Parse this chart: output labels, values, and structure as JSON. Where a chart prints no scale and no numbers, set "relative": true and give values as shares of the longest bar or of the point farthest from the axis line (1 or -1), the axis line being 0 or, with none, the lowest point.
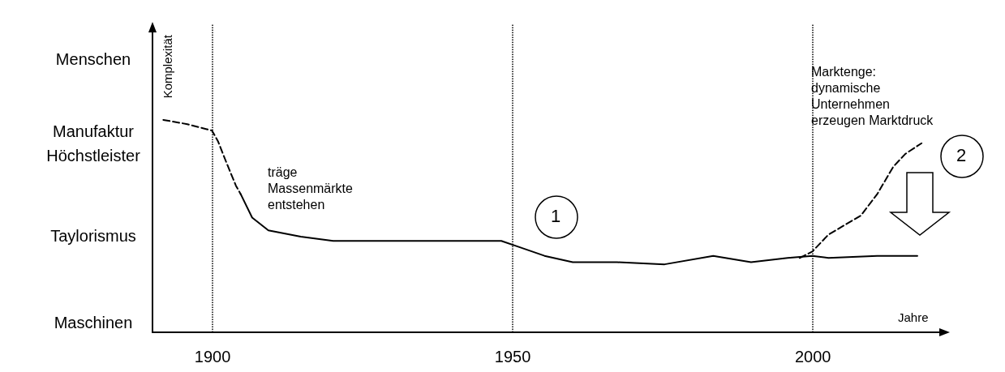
{
  "chart_data": {
    "type": "line",
    "xlabel": "Jahre",
    "ylabel": "Komplexität",
    "relative": true,
    "xlim": [
      1890,
      2022
    ],
    "xticks": [
      1900,
      1950,
      2000
    ],
    "marker": "none",
    "series": [
      {
        "color": "#000000",
        "line_style": "dashed",
        "x": [
          1891.8,
          1895.8,
          1899.9,
          1900.9,
          1902.3,
          1903.9,
          1904.7
        ],
        "values": [
          1.0,
          0.98,
          0.95,
          0.9,
          0.8,
          0.69,
          0.65
        ]
      },
      {
        "color": "#000000",
        "line_style": "solid",
        "x": [
          1904.7,
          1906.6,
          1909.3,
          1914.7,
          1920.1,
          1929.6,
          1943.1,
          1948.1,
          1951.2,
          1955.3,
          1960,
          1967.4,
          1975.3,
          1983.4,
          1989.7,
          1995.8,
          1999.9,
          2002.6,
          2010.7,
          2017.4
        ],
        "values": [
          0.65,
          0.54,
          0.48,
          0.45,
          0.43,
          0.43,
          0.43,
          0.43,
          0.4,
          0.36,
          0.33,
          0.33,
          0.32,
          0.36,
          0.33,
          0.35,
          0.36,
          0.35,
          0.36,
          0.36
        ]
      },
      {
        "color": "#000000",
        "line_style": "dashed",
        "x": [
          1997.8,
          1999.9,
          2002.6,
          2008,
          2010.7,
          2013.4,
          2015.4,
          2018.1
        ],
        "values": [
          0.35,
          0.38,
          0.46,
          0.55,
          0.65,
          0.78,
          0.84,
          0.89
        ]
      }
    ],
    "ref_lines": [
      {
        "axis": "x",
        "value": 1900,
        "color": "#000000",
        "line_style": "dotted"
      },
      {
        "axis": "x",
        "value": 1950,
        "color": "#000000",
        "line_style": "dotted"
      },
      {
        "axis": "x",
        "value": 2000,
        "color": "#000000",
        "line_style": "dotted"
      }
    ],
    "annotations": [
      "träge\nMassenmärkte\nentstehen",
      "1",
      "2",
      "Marktenge:\ndynamische\nUnternehmen\nerzeugen Marktdruck",
      "Menschen",
      "Manufaktur\nHöchstleister",
      "Taylorismus",
      "Maschinen"
    ]
  }
}
